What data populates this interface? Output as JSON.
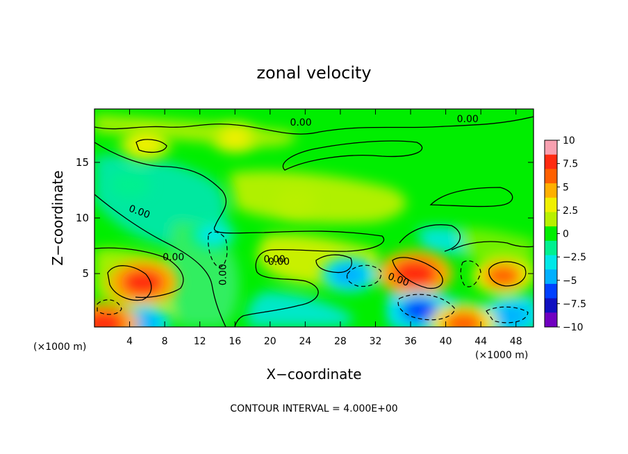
{
  "chart_data": {
    "type": "heatmap",
    "title": "zonal velocity",
    "xlabel": "X−coordinate",
    "ylabel": "Z−coordinate",
    "x_unit_left": "(×1000 m)",
    "x_unit_right": "(×1000 m)",
    "xlim": [
      0,
      50
    ],
    "ylim": [
      0.2,
      19.8
    ],
    "x_ticks": [
      4,
      8,
      12,
      16,
      20,
      24,
      28,
      32,
      36,
      40,
      44,
      48
    ],
    "x_tick_labels": [
      "4",
      "8",
      "12",
      "16",
      "20",
      "24",
      "28",
      "32",
      "36",
      "40",
      "44",
      "48"
    ],
    "y_ticks": [
      5,
      10,
      15
    ],
    "y_tick_labels": [
      "5",
      "10",
      "15"
    ],
    "colorbar": {
      "min": -10,
      "max": 10,
      "ticks": [
        10,
        7.5,
        5,
        2.5,
        0,
        -2.5,
        -5,
        -7.5,
        -10
      ],
      "tick_labels": [
        "10",
        "7.5",
        "5",
        "2.5",
        "0",
        "−2.5",
        "−5",
        "−7.5",
        "−10"
      ],
      "colors": [
        "#f8a0b0",
        "#ff2a10",
        "#ff6000",
        "#ffb000",
        "#f0f000",
        "#b8f000",
        "#00ee00",
        "#00f090",
        "#00e8e8",
        "#00b0ff",
        "#0040ff",
        "#1010c0",
        "#7000c0"
      ]
    },
    "contour_labels": [
      "0.00",
      "0.00",
      "0.00",
      "0.00",
      "0.00",
      "0.00",
      "0.00",
      "0.00"
    ],
    "footer": "CONTOUR INTERVAL = 4.000E+00",
    "features": [
      {
        "x": 5.5,
        "z": 4.2,
        "value": 8
      },
      {
        "x": 36.5,
        "z": 5.0,
        "value": 9
      },
      {
        "x": 46.5,
        "z": 4.8,
        "value": 6
      },
      {
        "x": 5.8,
        "z": 16.6,
        "value": 4
      },
      {
        "x": 16,
        "z": 17.2,
        "value": 3
      },
      {
        "x": 29,
        "z": 4.9,
        "value": -5
      },
      {
        "x": 37,
        "z": 1.7,
        "value": -6
      },
      {
        "x": 47.5,
        "z": 1.2,
        "value": -5
      },
      {
        "x": 5.5,
        "z": 0.6,
        "value": -5
      },
      {
        "x": 13.5,
        "z": 8.5,
        "value": -3
      },
      {
        "x": 4,
        "z": 13,
        "value": -2
      },
      {
        "x": 23,
        "z": 11.5,
        "value": 2
      },
      {
        "x": 1,
        "z": 0.5,
        "value": 8
      },
      {
        "x": 42,
        "z": 0.5,
        "value": 7
      }
    ]
  }
}
